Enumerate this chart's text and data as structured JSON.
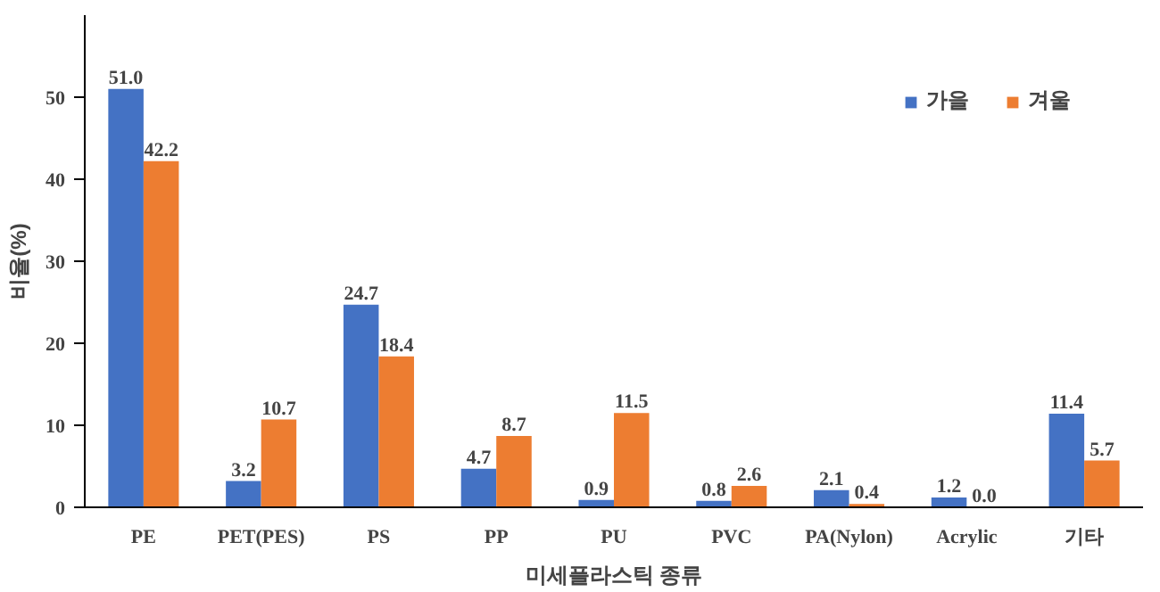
{
  "chart_data": {
    "type": "bar",
    "xlabel": "미세플라스틱 종류",
    "ylabel": "비율(%)",
    "categories": [
      "PE",
      "PET(PES)",
      "PS",
      "PP",
      "PU",
      "PVC",
      "PA(Nylon)",
      "Acrylic",
      "기타"
    ],
    "series": [
      {
        "name": "가을",
        "color": "#4472c4",
        "values": [
          51.0,
          3.2,
          24.7,
          4.7,
          0.9,
          0.8,
          2.1,
          1.2,
          11.4
        ],
        "value_labels": [
          "51.0",
          "3.2",
          "24.7",
          "4.7",
          "0.9",
          "0.8",
          "2.1",
          "1.2",
          "11.4"
        ]
      },
      {
        "name": "겨울",
        "color": "#ed7d31",
        "values": [
          42.2,
          10.7,
          18.4,
          8.7,
          11.5,
          2.6,
          0.4,
          0.0,
          5.7
        ],
        "value_labels": [
          "42.2",
          "10.7",
          "18.4",
          "8.7",
          "11.5",
          "2.6",
          "0.4",
          "0.0",
          "5.7"
        ]
      }
    ],
    "ylim": [
      0,
      60
    ],
    "yticks": [
      0,
      10,
      20,
      30,
      40,
      50
    ],
    "grid": false,
    "legend": "top right"
  }
}
